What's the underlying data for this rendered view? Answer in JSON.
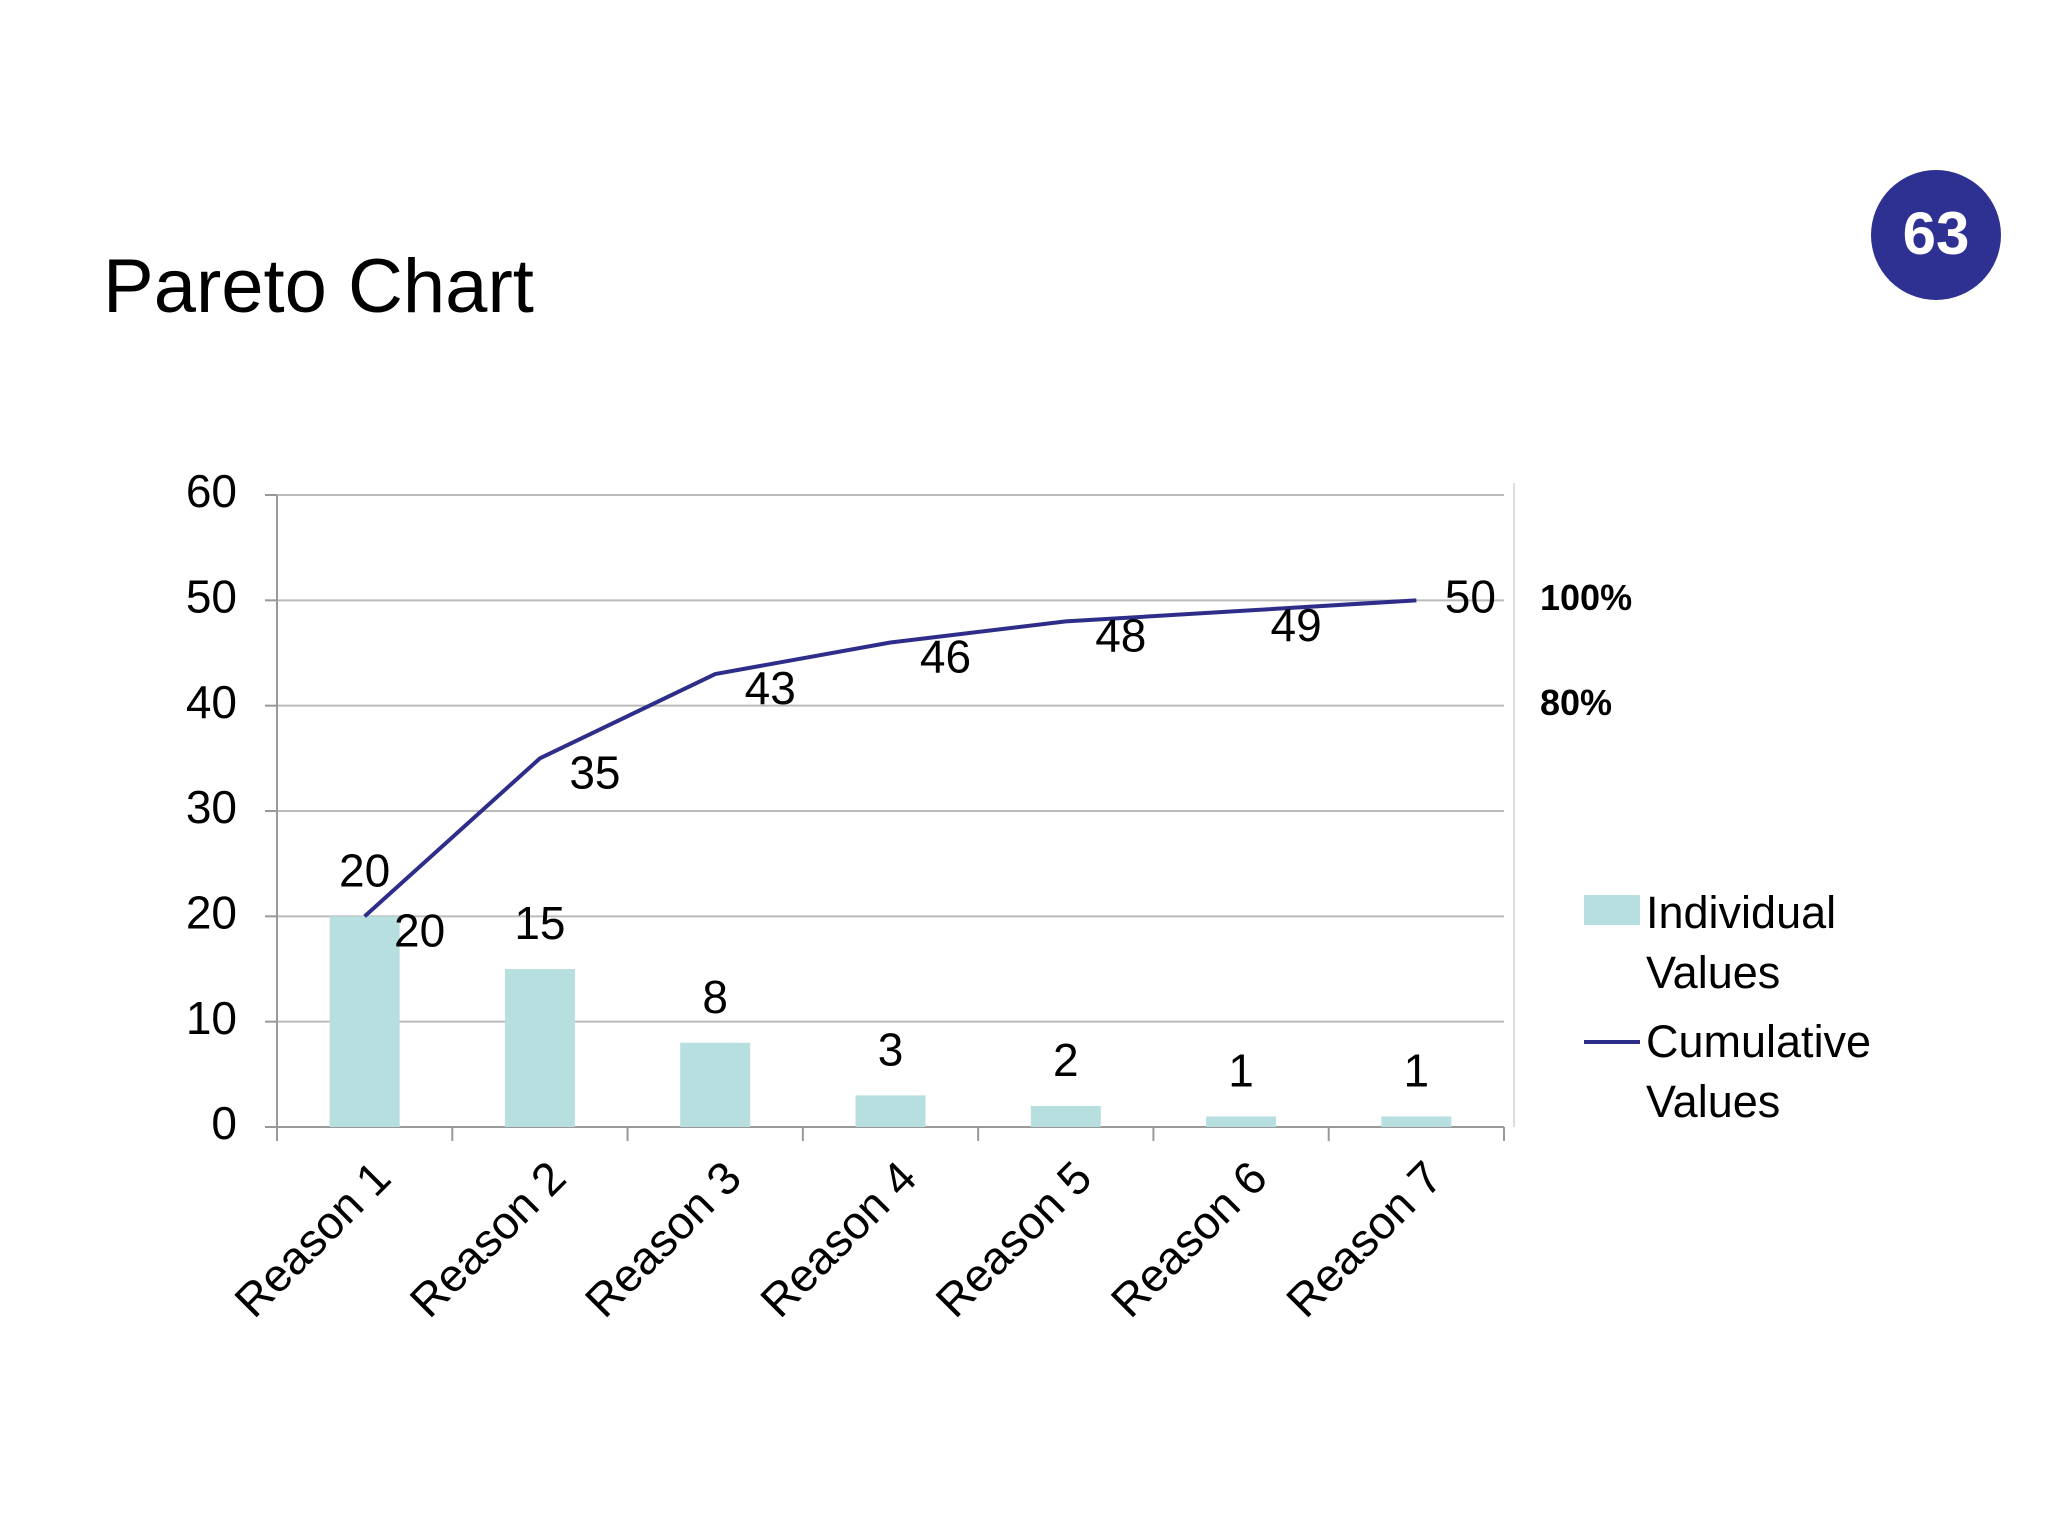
{
  "slide": {
    "number": "63"
  },
  "chart_data": {
    "type": "bar",
    "title": "Pareto Chart",
    "categories": [
      "Reason 1",
      "Reason 2",
      "Reason 3",
      "Reason 4",
      "Reason 5",
      "Reason 6",
      "Reason 7"
    ],
    "series": [
      {
        "name": "Individual Values",
        "type": "bar",
        "color": "#b7dfe0",
        "values": [
          20,
          15,
          8,
          3,
          2,
          1,
          1
        ]
      },
      {
        "name": "Cumulative Values",
        "type": "line",
        "color": "#2e2e8a",
        "values": [
          20,
          35,
          43,
          46,
          48,
          49,
          50
        ]
      }
    ],
    "ylim": [
      0,
      60
    ],
    "yticks": [
      0,
      10,
      20,
      30,
      40,
      50,
      60
    ],
    "y2lim": [
      0,
      120
    ],
    "y2ticks": [
      {
        "value": 80,
        "label": "80%"
      },
      {
        "value": 100,
        "label": "100%"
      }
    ],
    "grid": true,
    "legend": "right"
  }
}
